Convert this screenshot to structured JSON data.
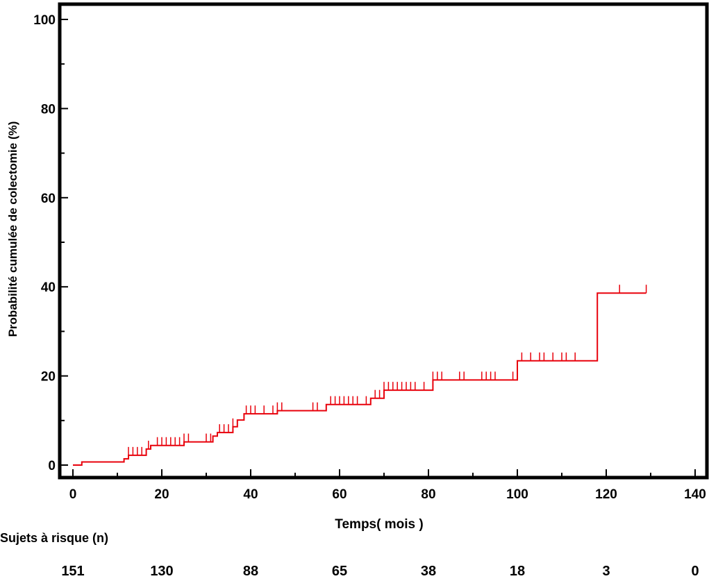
{
  "chart_data": {
    "type": "line",
    "title": "",
    "xlabel": "Temps( mois )",
    "ylabel": "Probabilité cumulée de colectomie (%)",
    "xlim": [
      0,
      140
    ],
    "ylim": [
      0,
      100
    ],
    "x_ticks": [
      "0",
      "20",
      "40",
      "60",
      "80",
      "100",
      "120",
      "140"
    ],
    "y_ticks": [
      "0",
      "20",
      "40",
      "60",
      "80",
      "100"
    ],
    "grid": false,
    "line_color": "#e8000b",
    "series": [
      {
        "steps": [
          [
            0,
            0
          ],
          [
            2,
            0.7
          ],
          [
            11.5,
            1.4
          ],
          [
            12.5,
            2.2
          ],
          [
            16.5,
            3.6
          ],
          [
            17.5,
            4.4
          ],
          [
            25,
            5.2
          ],
          [
            31.5,
            6.5
          ],
          [
            32.5,
            7.3
          ],
          [
            36,
            8.6
          ],
          [
            37,
            10.1
          ],
          [
            38.5,
            11.5
          ],
          [
            46,
            12.2
          ],
          [
            57,
            13.6
          ],
          [
            67,
            15.0
          ],
          [
            70,
            16.8
          ],
          [
            81,
            19.1
          ],
          [
            100,
            23.4
          ],
          [
            118,
            38.6
          ],
          [
            129,
            38.6
          ]
        ],
        "censor_marks": [
          12.5,
          13.5,
          14.5,
          15.5,
          17,
          19,
          20,
          21,
          22,
          23,
          24,
          25,
          26,
          30,
          31,
          33,
          34,
          35,
          36,
          39,
          40,
          41,
          43,
          45,
          46,
          47,
          54,
          55,
          58,
          59,
          60,
          61,
          62,
          63,
          64,
          66,
          68,
          69,
          70,
          71,
          72,
          73,
          74,
          75,
          76,
          77,
          79,
          81,
          82,
          83,
          87,
          88,
          92,
          93,
          94,
          95,
          99,
          101,
          103,
          105,
          106,
          108,
          110,
          111,
          113,
          123,
          129
        ]
      }
    ],
    "risk_table": {
      "label": "Sujets à risque (n)",
      "times": [
        0,
        20,
        40,
        60,
        80,
        100,
        120,
        140
      ],
      "values": [
        "151",
        "130",
        "88",
        "65",
        "38",
        "18",
        "3",
        "0"
      ]
    }
  }
}
